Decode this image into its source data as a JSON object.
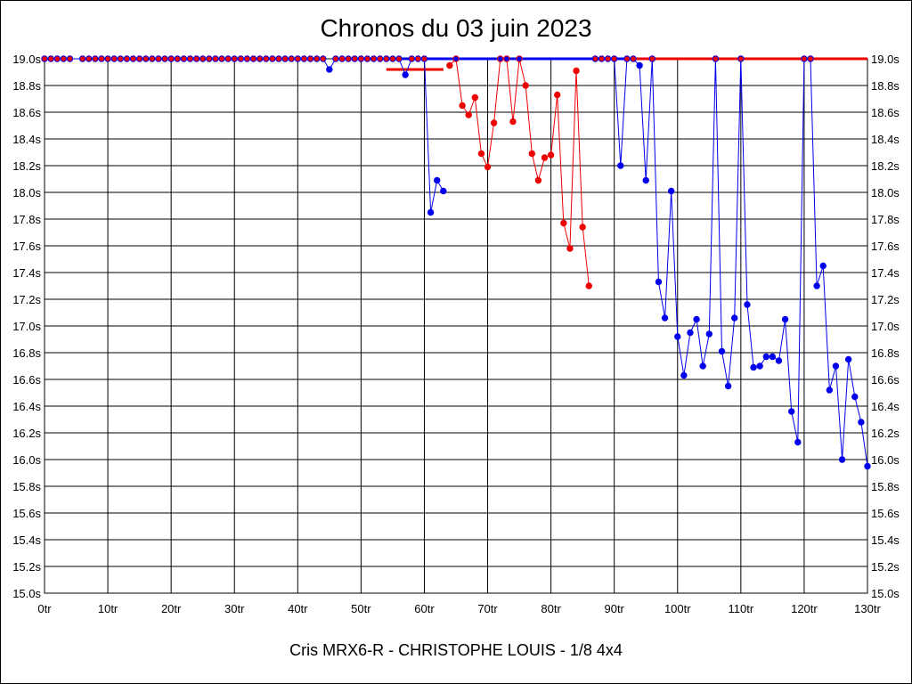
{
  "chart_data": {
    "type": "line",
    "title": "Chronos du 03 juin 2023",
    "caption": "Cris MRX6-R - CHRISTOPHE LOUIS - 1/8 4x4",
    "xlim": [
      0,
      130
    ],
    "ylim": [
      15.0,
      19.0
    ],
    "x_ticks": [
      0,
      10,
      20,
      30,
      40,
      50,
      60,
      70,
      80,
      90,
      100,
      110,
      120,
      130
    ],
    "x_tick_suffix": "tr",
    "y_ticks": [
      15.0,
      15.2,
      15.4,
      15.6,
      15.8,
      16.0,
      16.2,
      16.4,
      16.6,
      16.8,
      17.0,
      17.2,
      17.4,
      17.6,
      17.8,
      18.0,
      18.2,
      18.4,
      18.6,
      18.8,
      19.0
    ],
    "y_tick_suffix": "s",
    "grid": true,
    "series": [
      {
        "color": "#0000ee",
        "points": [
          [
            0,
            19.0
          ],
          [
            1,
            19.0
          ],
          [
            2,
            19.0
          ],
          [
            3,
            19.0
          ],
          [
            4,
            19.0
          ],
          [
            6,
            19.0
          ],
          [
            7,
            19.0
          ],
          [
            8,
            19.0
          ],
          [
            9,
            19.0
          ],
          [
            10,
            19.0
          ],
          [
            11,
            19.0
          ],
          [
            12,
            19.0
          ],
          [
            13,
            19.0
          ],
          [
            14,
            19.0
          ],
          [
            15,
            19.0
          ],
          [
            16,
            19.0
          ],
          [
            17,
            19.0
          ],
          [
            18,
            19.0
          ],
          [
            19,
            19.0
          ],
          [
            20,
            19.0
          ],
          [
            21,
            19.0
          ],
          [
            22,
            19.0
          ],
          [
            23,
            19.0
          ],
          [
            24,
            19.0
          ],
          [
            25,
            19.0
          ],
          [
            26,
            19.0
          ],
          [
            27,
            19.0
          ],
          [
            28,
            19.0
          ],
          [
            29,
            19.0
          ],
          [
            30,
            19.0
          ],
          [
            31,
            19.0
          ],
          [
            32,
            19.0
          ],
          [
            33,
            19.0
          ],
          [
            34,
            19.0
          ],
          [
            35,
            19.0
          ],
          [
            36,
            19.0
          ],
          [
            37,
            19.0
          ],
          [
            38,
            19.0
          ],
          [
            39,
            19.0
          ],
          [
            40,
            19.0
          ],
          [
            41,
            19.0
          ],
          [
            42,
            19.0
          ],
          [
            43,
            19.0
          ],
          [
            44,
            19.0
          ],
          [
            45,
            18.92
          ],
          [
            46,
            19.0
          ],
          [
            47,
            19.0
          ],
          [
            48,
            19.0
          ],
          [
            49,
            19.0
          ],
          [
            50,
            19.0
          ],
          [
            51,
            19.0
          ],
          [
            52,
            19.0
          ],
          [
            53,
            19.0
          ],
          [
            54,
            19.0
          ],
          [
            55,
            19.0
          ],
          [
            56,
            19.0
          ],
          [
            57,
            18.88
          ],
          [
            58,
            19.0
          ],
          [
            59,
            19.0
          ],
          [
            60,
            19.0
          ],
          [
            61,
            17.85
          ],
          [
            62,
            18.09
          ],
          [
            63,
            18.01
          ]
        ]
      },
      {
        "color": "#ee0000",
        "points": [
          [
            64,
            18.95
          ],
          [
            65,
            19.0
          ],
          [
            66,
            18.65
          ],
          [
            67,
            18.58
          ],
          [
            68,
            18.71
          ],
          [
            69,
            18.29
          ],
          [
            70,
            18.19
          ],
          [
            71,
            18.52
          ],
          [
            72,
            19.0
          ],
          [
            73,
            19.0
          ],
          [
            74,
            18.53
          ],
          [
            75,
            19.0
          ],
          [
            76,
            18.8
          ],
          [
            77,
            18.29
          ],
          [
            78,
            18.09
          ],
          [
            79,
            18.26
          ],
          [
            80,
            18.28
          ],
          [
            81,
            18.73
          ],
          [
            82,
            17.77
          ],
          [
            83,
            17.58
          ],
          [
            84,
            18.91
          ],
          [
            85,
            17.74
          ],
          [
            86,
            17.3
          ]
        ]
      },
      {
        "color": "#0000ee",
        "points": [
          [
            87,
            19.0
          ],
          [
            88,
            19.0
          ],
          [
            89,
            19.0
          ],
          [
            90,
            19.0
          ],
          [
            91,
            18.2
          ],
          [
            92,
            19.0
          ],
          [
            93,
            19.0
          ],
          [
            94,
            18.95
          ],
          [
            95,
            18.09
          ],
          [
            96,
            19.0
          ],
          [
            97,
            17.33
          ],
          [
            98,
            17.06
          ],
          [
            99,
            18.01
          ],
          [
            100,
            16.92
          ],
          [
            101,
            16.63
          ],
          [
            102,
            16.95
          ],
          [
            103,
            17.05
          ],
          [
            104,
            16.7
          ],
          [
            105,
            16.94
          ],
          [
            106,
            19.0
          ],
          [
            107,
            16.81
          ],
          [
            108,
            16.55
          ],
          [
            109,
            17.06
          ],
          [
            110,
            19.0
          ],
          [
            111,
            17.16
          ],
          [
            112,
            16.69
          ],
          [
            113,
            16.7
          ],
          [
            114,
            16.77
          ],
          [
            115,
            16.77
          ],
          [
            116,
            16.74
          ],
          [
            117,
            17.05
          ],
          [
            118,
            16.36
          ],
          [
            119,
            16.13
          ],
          [
            120,
            19.0
          ],
          [
            121,
            19.0
          ],
          [
            122,
            17.3
          ],
          [
            123,
            17.45
          ],
          [
            124,
            16.52
          ],
          [
            125,
            16.7
          ],
          [
            126,
            16.0
          ],
          [
            127,
            16.75
          ],
          [
            128,
            16.47
          ],
          [
            129,
            16.28
          ],
          [
            130,
            15.95
          ]
        ]
      }
    ],
    "reference_lines": [
      {
        "color": "#0000ee",
        "x": [
          54,
          93
        ],
        "y": 19.0
      },
      {
        "color": "#ee0000",
        "x": [
          93,
          130
        ],
        "y": 19.0
      },
      {
        "color": "#ee0000",
        "x": [
          54,
          63
        ],
        "y": 18.92
      }
    ]
  }
}
